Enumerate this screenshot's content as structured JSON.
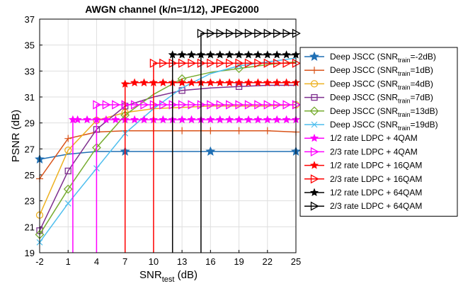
{
  "chart_data": {
    "type": "line",
    "title": "AWGN channel (k/n=1/12), JPEG2000",
    "xlabel": {
      "main": "SNR",
      "sub": "test",
      "unit": " (dB)"
    },
    "ylabel": "PSNR (dB)",
    "xlim": [
      -2,
      25
    ],
    "ylim": [
      19,
      37
    ],
    "xticks": [
      -2,
      1,
      4,
      7,
      10,
      13,
      16,
      19,
      22,
      25
    ],
    "yticks": [
      19,
      21,
      23,
      25,
      27,
      29,
      31,
      33,
      35,
      37
    ],
    "grid": true,
    "legend_position": "right-outside",
    "series": [
      {
        "name": "Deep JSCC (SNR_train=-2dB)",
        "label_main": "Deep JSCC (SNR",
        "label_sub": "train",
        "label_tail": "=-2dB)",
        "color": "#1f6fb4",
        "marker": "star",
        "marker_every": [
          0,
          3,
          6,
          9
        ],
        "x": [
          -2,
          1,
          4,
          7,
          10,
          13,
          16,
          19,
          22,
          25
        ],
        "y": [
          26.2,
          26.6,
          26.8,
          26.8,
          26.8,
          26.8,
          26.8,
          26.8,
          26.8,
          26.8
        ]
      },
      {
        "name": "Deep JSCC (SNR_train=1dB)",
        "label_main": "Deep JSCC (SNR",
        "label_sub": "train",
        "label_tail": "=1dB)",
        "color": "#d95319",
        "marker": "plus",
        "marker_every": [
          0,
          1,
          2,
          3,
          4,
          5,
          6,
          7,
          8,
          9
        ],
        "x": [
          -2,
          1,
          4,
          7,
          10,
          13,
          16,
          19,
          22,
          25
        ],
        "y": [
          24.7,
          27.8,
          28.3,
          28.4,
          28.4,
          28.4,
          28.4,
          28.4,
          28.4,
          28.3
        ]
      },
      {
        "name": "Deep JSCC (SNR_train=4dB)",
        "label_main": "Deep JSCC (SNR",
        "label_sub": "train",
        "label_tail": "=4dB)",
        "color": "#edb120",
        "marker": "circle",
        "marker_every": [
          0,
          1,
          2,
          3,
          9
        ],
        "x": [
          -2,
          1,
          4,
          7,
          10,
          13,
          16,
          19,
          22,
          25
        ],
        "y": [
          21.9,
          26.9,
          29.2,
          29.8,
          30.1,
          30.2,
          30.3,
          30.3,
          30.3,
          30.4
        ]
      },
      {
        "name": "Deep JSCC (SNR_train=7dB)",
        "label_main": "Deep JSCC (SNR",
        "label_sub": "train",
        "label_tail": "=7dB)",
        "color": "#7e2f8e",
        "marker": "square",
        "marker_every": [
          0,
          1,
          2,
          3,
          5,
          7
        ],
        "x": [
          -2,
          1,
          4,
          7,
          10,
          13,
          16,
          19,
          22,
          25
        ],
        "y": [
          20.7,
          25.3,
          28.5,
          30.3,
          31.0,
          31.5,
          31.7,
          31.8,
          31.9,
          31.9
        ]
      },
      {
        "name": "Deep JSCC (SNR_train=13dB)",
        "label_main": "Deep JSCC (SNR",
        "label_sub": "train",
        "label_tail": "=13dB)",
        "color": "#77ac30",
        "marker": "diamond",
        "marker_every": [
          0,
          1,
          2,
          3,
          5,
          7
        ],
        "x": [
          -2,
          1,
          4,
          7,
          10,
          13,
          16,
          19,
          22,
          25
        ],
        "y": [
          20.4,
          23.9,
          27.1,
          29.6,
          31.2,
          32.4,
          32.9,
          33.2,
          33.5,
          33.7
        ]
      },
      {
        "name": "Deep JSCC (SNR_train=19dB)",
        "label_main": "Deep JSCC (SNR",
        "label_sub": "train",
        "label_tail": "=19dB)",
        "color": "#4dbeee",
        "marker": "cross",
        "marker_every": [
          0,
          1,
          2,
          3,
          7
        ],
        "x": [
          -2,
          1,
          4,
          7,
          10,
          13,
          16,
          19,
          22,
          25
        ],
        "y": [
          19.8,
          22.8,
          25.5,
          28.2,
          30.1,
          31.7,
          32.8,
          33.4,
          33.7,
          34.0
        ]
      },
      {
        "name": "1/2 rate LDPC + 4QAM",
        "label_main": "1/2 rate LDPC + 4QAM",
        "color": "#ff00ff",
        "marker": "filled-star",
        "cliff_x": 1.5,
        "x": [
          1.5,
          2,
          3,
          4,
          5,
          6,
          7,
          8,
          9,
          10,
          11,
          12,
          13,
          14,
          15,
          16,
          17,
          18,
          19,
          20,
          21,
          22,
          23,
          24,
          25
        ],
        "y": [
          29.25,
          29.25,
          29.25,
          29.25,
          29.25,
          29.25,
          29.25,
          29.25,
          29.25,
          29.25,
          29.25,
          29.25,
          29.25,
          29.25,
          29.25,
          29.25,
          29.25,
          29.25,
          29.25,
          29.25,
          29.25,
          29.25,
          29.25,
          29.25,
          29.25
        ]
      },
      {
        "name": "2/3 rate LDPC + 4QAM",
        "label_main": "2/3 rate LDPC + 4QAM",
        "color": "#ff00ff",
        "marker": "triangle-right",
        "cliff_x": 4,
        "x": [
          4,
          5,
          6,
          7,
          8,
          9,
          10,
          11,
          12,
          13,
          14,
          15,
          16,
          17,
          18,
          19,
          20,
          21,
          22,
          23,
          24,
          25
        ],
        "y": [
          30.4,
          30.4,
          30.4,
          30.4,
          30.4,
          30.4,
          30.4,
          30.4,
          30.4,
          30.4,
          30.4,
          30.4,
          30.4,
          30.4,
          30.4,
          30.4,
          30.4,
          30.4,
          30.4,
          30.4,
          30.4,
          30.4
        ]
      },
      {
        "name": "1/2 rate LDPC + 16QAM",
        "label_main": "1/2 rate LDPC + 16QAM",
        "color": "#ff0000",
        "marker": "filled-star",
        "cliff_x": 7,
        "x": [
          7,
          8,
          9,
          10,
          11,
          12,
          13,
          14,
          15,
          16,
          17,
          18,
          19,
          20,
          21,
          22,
          23,
          24,
          25
        ],
        "y": [
          32.0,
          32.1,
          32.1,
          32.1,
          32.1,
          32.1,
          32.1,
          32.1,
          32.1,
          32.1,
          32.1,
          32.1,
          32.1,
          32.1,
          32.1,
          32.1,
          32.1,
          32.1,
          32.1
        ]
      },
      {
        "name": "2/3 rate LDPC + 16QAM",
        "label_main": "2/3 rate LDPC + 16QAM",
        "color": "#ff0000",
        "marker": "triangle-right",
        "cliff_x": 10,
        "x": [
          10,
          11,
          12,
          13,
          14,
          15,
          16,
          17,
          18,
          19,
          20,
          21,
          22,
          23,
          24,
          25
        ],
        "y": [
          33.6,
          33.6,
          33.6,
          33.6,
          33.6,
          33.6,
          33.6,
          33.6,
          33.6,
          33.6,
          33.6,
          33.6,
          33.6,
          33.6,
          33.6,
          33.6
        ]
      },
      {
        "name": "1/2 rate LDPC + 64QAM",
        "label_main": "1/2 rate LDPC + 64QAM",
        "color": "#000000",
        "marker": "filled-star",
        "cliff_x": 12,
        "x": [
          12,
          13,
          14,
          15,
          16,
          17,
          18,
          19,
          20,
          21,
          22,
          23,
          24,
          25
        ],
        "y": [
          34.25,
          34.25,
          34.25,
          34.25,
          34.25,
          34.25,
          34.25,
          34.25,
          34.25,
          34.25,
          34.25,
          34.25,
          34.25,
          34.25
        ]
      },
      {
        "name": "2/3 rate LDPC + 64QAM",
        "label_main": "2/3 rate LDPC + 64QAM",
        "color": "#000000",
        "marker": "triangle-right",
        "cliff_x": 15,
        "x": [
          15,
          16,
          17,
          18,
          19,
          20,
          21,
          22,
          23,
          24,
          25
        ],
        "y": [
          35.9,
          35.9,
          35.9,
          35.9,
          35.9,
          35.9,
          35.9,
          35.9,
          35.9,
          35.9,
          35.9
        ]
      }
    ]
  }
}
